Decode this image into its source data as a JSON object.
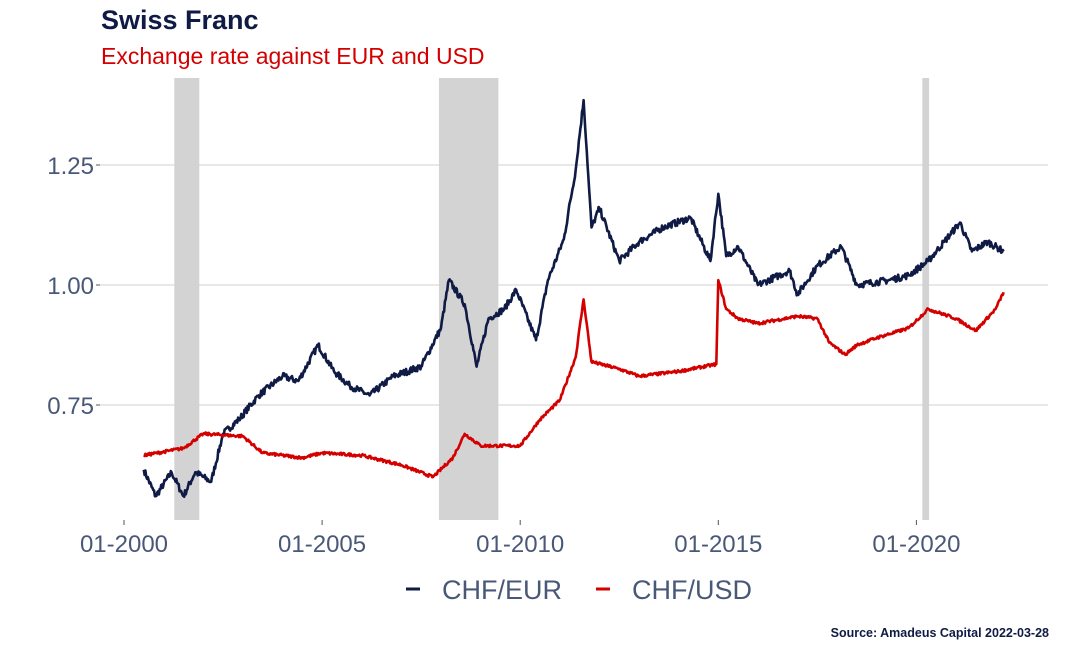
{
  "chart_data": {
    "type": "line",
    "title": "Swiss Franc",
    "subtitle": "Exchange rate against EUR and USD",
    "source": "Source: Amadeus Capital 2022-03-28",
    "xlabel": "",
    "ylabel": "",
    "xlim": [
      1999.4,
      2023.3
    ],
    "ylim": [
      0.51,
      1.41
    ],
    "grid": "horizontal",
    "legend_position": "bottom",
    "x_ticks": [
      {
        "value": 2000,
        "label": "01-2000"
      },
      {
        "value": 2005,
        "label": "01-2005"
      },
      {
        "value": 2010,
        "label": "01-2010"
      },
      {
        "value": 2015,
        "label": "01-2015"
      },
      {
        "value": 2020,
        "label": "01-2020"
      }
    ],
    "y_ticks": [
      {
        "value": 0.75,
        "label": "0.75"
      },
      {
        "value": 1.0,
        "label": "1.00"
      },
      {
        "value": 1.25,
        "label": "1.25"
      }
    ],
    "shaded_periods": [
      [
        2001.27,
        2001.9
      ],
      [
        2007.95,
        2009.45
      ],
      [
        2020.15,
        2020.32
      ]
    ],
    "series": [
      {
        "name": "CHF/EUR",
        "color": "#0f1a45",
        "x": [
          2000.5,
          2000.8,
          2001.2,
          2001.5,
          2001.8,
          2002.2,
          2002.5,
          2002.9,
          2003.4,
          2004.0,
          2004.4,
          2004.9,
          2005.3,
          2005.7,
          2006.2,
          2006.8,
          2007.5,
          2008.0,
          2008.2,
          2008.6,
          2008.9,
          2009.2,
          2009.6,
          2009.9,
          2010.4,
          2010.7,
          2011.1,
          2011.4,
          2011.6,
          2011.8,
          2012.0,
          2012.5,
          2013.0,
          2013.6,
          2014.3,
          2014.8,
          2015.0,
          2015.2,
          2015.5,
          2016.0,
          2016.8,
          2017.0,
          2017.5,
          2018.1,
          2018.5,
          2019.3,
          2019.8,
          2020.3,
          2020.7,
          2021.1,
          2021.4,
          2021.8,
          2022.2
        ],
        "values": [
          0.615,
          0.56,
          0.61,
          0.56,
          0.61,
          0.59,
          0.69,
          0.72,
          0.77,
          0.81,
          0.8,
          0.875,
          0.82,
          0.79,
          0.77,
          0.81,
          0.83,
          0.91,
          1.01,
          0.96,
          0.83,
          0.93,
          0.95,
          0.99,
          0.885,
          1.01,
          1.095,
          1.24,
          1.385,
          1.12,
          1.16,
          1.05,
          1.09,
          1.12,
          1.14,
          1.05,
          1.19,
          1.06,
          1.08,
          1.0,
          1.03,
          0.98,
          1.04,
          1.08,
          1.0,
          1.01,
          1.02,
          1.05,
          1.09,
          1.13,
          1.07,
          1.09,
          1.07
        ]
      },
      {
        "name": "CHF/USD",
        "color": "#d40000",
        "x": [
          2000.5,
          2001.5,
          2002.0,
          2003.0,
          2003.5,
          2004.5,
          2005.0,
          2006.0,
          2007.0,
          2007.8,
          2008.3,
          2008.6,
          2009.0,
          2010.0,
          2010.5,
          2011.0,
          2011.4,
          2011.6,
          2011.8,
          2012.5,
          2013.0,
          2014.0,
          2014.95,
          2015.0,
          2015.2,
          2015.5,
          2016.0,
          2017.0,
          2017.5,
          2017.8,
          2018.2,
          2018.5,
          2019.0,
          2019.8,
          2020.3,
          2021.0,
          2021.5,
          2022.0,
          2022.2
        ],
        "values": [
          0.645,
          0.66,
          0.69,
          0.685,
          0.65,
          0.64,
          0.65,
          0.645,
          0.625,
          0.6,
          0.64,
          0.69,
          0.665,
          0.665,
          0.72,
          0.76,
          0.85,
          0.97,
          0.84,
          0.825,
          0.81,
          0.82,
          0.835,
          1.01,
          0.95,
          0.93,
          0.92,
          0.935,
          0.93,
          0.88,
          0.855,
          0.875,
          0.89,
          0.91,
          0.95,
          0.93,
          0.905,
          0.95,
          0.985
        ]
      }
    ]
  }
}
